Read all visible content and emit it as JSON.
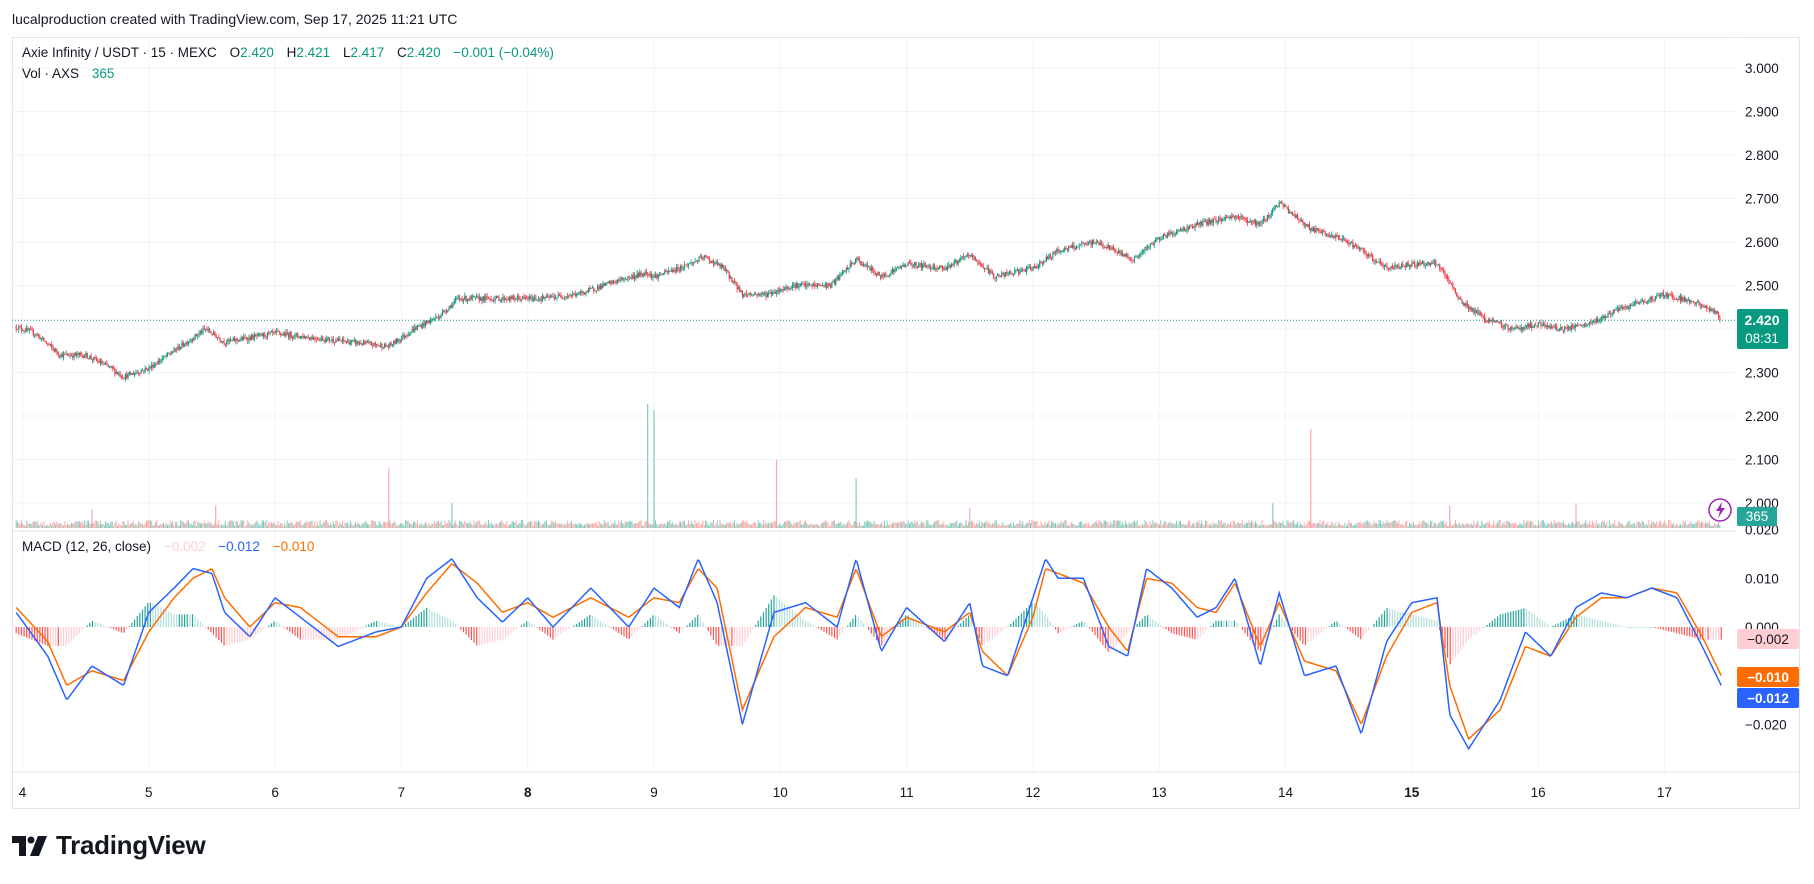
{
  "header": {
    "credit": "lucalproduction created with TradingView.com, Sep 17, 2025 11:21 UTC"
  },
  "legend": {
    "symbol": "Axie Infinity / USDT · 15 · MEXC",
    "o_label": "O",
    "o_value": "2.420",
    "h_label": "H",
    "h_value": "2.421",
    "l_label": "L",
    "l_value": "2.417",
    "c_label": "C",
    "c_value": "2.420",
    "change": "−0.001 (−0.04%)",
    "vol_label": "Vol · AXS",
    "vol_value": "365",
    "macd_label": "MACD (12, 26, close)",
    "macd_hist": "−0.002",
    "macd_line": "−0.012",
    "macd_signal": "−0.010"
  },
  "price_badge": {
    "price": "2.420",
    "countdown": "08:31"
  },
  "volume_badge": "365",
  "macd_badges": {
    "hist": "−0.002",
    "signal": "−0.010",
    "macd": "−0.012"
  },
  "colors": {
    "up": "#089981",
    "down": "#f23645",
    "macd": "#2962ff",
    "signal": "#ff6d00",
    "hist_light_down": "#ffcdd2",
    "grid": "#f0f3fa"
  },
  "brand": {
    "name": "TradingView"
  },
  "chart_data": [
    {
      "type": "candlestick",
      "title": "Axie Infinity / USDT · 15 · MEXC",
      "ylim": [
        1.95,
        3.05
      ],
      "y_ticks": [
        "3.000",
        "2.900",
        "2.800",
        "2.700",
        "2.600",
        "2.500",
        "2.400",
        "2.300",
        "2.200",
        "2.100",
        "2.000"
      ],
      "x_ticks": [
        "4",
        "5",
        "6",
        "7",
        "8",
        "9",
        "10",
        "11",
        "12",
        "13",
        "14",
        "15",
        "16",
        "17"
      ],
      "x_ticks_bold": [
        "8",
        "15"
      ],
      "last_price": 2.42,
      "close_path": {
        "x": [
          3.95,
          4.1,
          4.3,
          4.5,
          4.7,
          4.8,
          5.0,
          5.2,
          5.45,
          5.6,
          5.8,
          6.0,
          6.3,
          6.6,
          6.9,
          7.1,
          7.3,
          7.45,
          7.8,
          8.1,
          8.4,
          8.7,
          8.95,
          9.0,
          9.2,
          9.4,
          9.55,
          9.7,
          9.9,
          10.1,
          10.4,
          10.6,
          10.8,
          11.0,
          11.3,
          11.5,
          11.7,
          12.0,
          12.2,
          12.5,
          12.8,
          13.0,
          13.3,
          13.6,
          13.8,
          13.95,
          14.2,
          14.5,
          14.8,
          15.0,
          15.2,
          15.4,
          15.6,
          15.8,
          16.0,
          16.2,
          16.4,
          16.6,
          16.8,
          17.0,
          17.2,
          17.4,
          17.45
        ],
        "y": [
          2.405,
          2.39,
          2.34,
          2.34,
          2.31,
          2.29,
          2.31,
          2.35,
          2.4,
          2.37,
          2.38,
          2.39,
          2.38,
          2.37,
          2.36,
          2.4,
          2.43,
          2.47,
          2.47,
          2.47,
          2.48,
          2.51,
          2.53,
          2.52,
          2.54,
          2.565,
          2.54,
          2.48,
          2.48,
          2.5,
          2.5,
          2.56,
          2.52,
          2.55,
          2.54,
          2.57,
          2.52,
          2.54,
          2.58,
          2.6,
          2.56,
          2.61,
          2.64,
          2.66,
          2.64,
          2.69,
          2.63,
          2.6,
          2.54,
          2.55,
          2.55,
          2.46,
          2.42,
          2.4,
          2.41,
          2.4,
          2.41,
          2.44,
          2.46,
          2.48,
          2.465,
          2.44,
          2.42
        ]
      }
    },
    {
      "type": "bar",
      "title": "Vol · AXS",
      "last_value": 365,
      "spikes": [
        {
          "x": 4.55,
          "rel": 0.15,
          "up": false
        },
        {
          "x": 5.53,
          "rel": 0.18,
          "up": false
        },
        {
          "x": 6.9,
          "rel": 0.48,
          "up": false
        },
        {
          "x": 7.4,
          "rel": 0.2,
          "up": true
        },
        {
          "x": 8.95,
          "rel": 1.0,
          "up": true
        },
        {
          "x": 9.0,
          "rel": 0.95,
          "up": true
        },
        {
          "x": 9.97,
          "rel": 0.55,
          "up": false
        },
        {
          "x": 10.6,
          "rel": 0.4,
          "up": true
        },
        {
          "x": 11.5,
          "rel": 0.16,
          "up": false
        },
        {
          "x": 13.9,
          "rel": 0.2,
          "up": true
        },
        {
          "x": 14.2,
          "rel": 0.8,
          "up": false
        },
        {
          "x": 15.3,
          "rel": 0.18,
          "up": false
        },
        {
          "x": 16.3,
          "rel": 0.2,
          "up": false
        }
      ]
    },
    {
      "type": "line",
      "title": "MACD (12, 26, close)",
      "ylim": [
        -0.026,
        0.017
      ],
      "y_ticks": [
        "0.020",
        "0.010",
        "0.000",
        "−0.020"
      ],
      "series": [
        {
          "name": "MACD",
          "x": [
            3.95,
            4.2,
            4.35,
            4.55,
            4.8,
            5.0,
            5.2,
            5.35,
            5.5,
            5.6,
            5.8,
            6.0,
            6.2,
            6.5,
            6.8,
            7.0,
            7.2,
            7.4,
            7.6,
            7.8,
            8.0,
            8.2,
            8.5,
            8.8,
            9.0,
            9.2,
            9.35,
            9.5,
            9.7,
            9.95,
            10.2,
            10.45,
            10.6,
            10.8,
            11.0,
            11.3,
            11.5,
            11.6,
            11.8,
            12.0,
            12.1,
            12.2,
            12.4,
            12.6,
            12.75,
            12.9,
            13.1,
            13.3,
            13.45,
            13.6,
            13.8,
            13.95,
            14.15,
            14.4,
            14.6,
            14.8,
            15.0,
            15.2,
            15.3,
            15.45,
            15.7,
            15.9,
            16.1,
            16.3,
            16.5,
            16.7,
            16.9,
            17.1,
            17.3,
            17.45
          ],
          "y": [
            0.003,
            -0.006,
            -0.015,
            -0.008,
            -0.012,
            0.003,
            0.008,
            0.012,
            0.011,
            0.003,
            -0.002,
            0.006,
            0.002,
            -0.004,
            -0.001,
            0.0,
            0.01,
            0.014,
            0.006,
            0.001,
            0.006,
            0.0,
            0.008,
            0.0,
            0.008,
            0.004,
            0.014,
            0.005,
            -0.02,
            0.003,
            0.005,
            0.0,
            0.014,
            -0.005,
            0.004,
            -0.003,
            0.005,
            -0.008,
            -0.01,
            0.006,
            0.014,
            0.01,
            0.01,
            -0.004,
            -0.006,
            0.012,
            0.008,
            0.002,
            0.004,
            0.01,
            -0.008,
            0.007,
            -0.01,
            -0.008,
            -0.022,
            -0.003,
            0.005,
            0.006,
            -0.018,
            -0.025,
            -0.015,
            -0.001,
            -0.006,
            0.004,
            0.007,
            0.006,
            0.008,
            0.006,
            -0.004,
            -0.012
          ]
        },
        {
          "name": "Signal",
          "x": [
            3.95,
            4.2,
            4.35,
            4.55,
            4.8,
            5.0,
            5.2,
            5.35,
            5.5,
            5.6,
            5.8,
            6.0,
            6.2,
            6.5,
            6.8,
            7.0,
            7.2,
            7.4,
            7.6,
            7.8,
            8.0,
            8.2,
            8.5,
            8.8,
            9.0,
            9.2,
            9.35,
            9.5,
            9.7,
            9.95,
            10.2,
            10.45,
            10.6,
            10.8,
            11.0,
            11.3,
            11.5,
            11.6,
            11.8,
            12.0,
            12.1,
            12.2,
            12.4,
            12.6,
            12.75,
            12.9,
            13.1,
            13.3,
            13.45,
            13.6,
            13.8,
            13.95,
            14.15,
            14.4,
            14.6,
            14.8,
            15.0,
            15.2,
            15.3,
            15.45,
            15.7,
            15.9,
            16.1,
            16.3,
            16.5,
            16.7,
            16.9,
            17.1,
            17.3,
            17.45
          ],
          "y": [
            0.004,
            -0.003,
            -0.012,
            -0.009,
            -0.011,
            -0.001,
            0.006,
            0.01,
            0.012,
            0.006,
            0.0,
            0.005,
            0.004,
            -0.002,
            -0.002,
            0.0,
            0.007,
            0.013,
            0.009,
            0.003,
            0.005,
            0.002,
            0.006,
            0.002,
            0.006,
            0.005,
            0.012,
            0.008,
            -0.017,
            -0.002,
            0.004,
            0.002,
            0.012,
            -0.002,
            0.002,
            -0.001,
            0.003,
            -0.005,
            -0.01,
            0.002,
            0.012,
            0.011,
            0.009,
            0.0,
            -0.005,
            0.01,
            0.009,
            0.004,
            0.003,
            0.009,
            -0.004,
            0.005,
            -0.007,
            -0.009,
            -0.02,
            -0.006,
            0.003,
            0.005,
            -0.012,
            -0.023,
            -0.017,
            -0.004,
            -0.006,
            0.002,
            0.006,
            0.006,
            0.008,
            0.007,
            -0.002,
            -0.01
          ]
        }
      ]
    }
  ]
}
